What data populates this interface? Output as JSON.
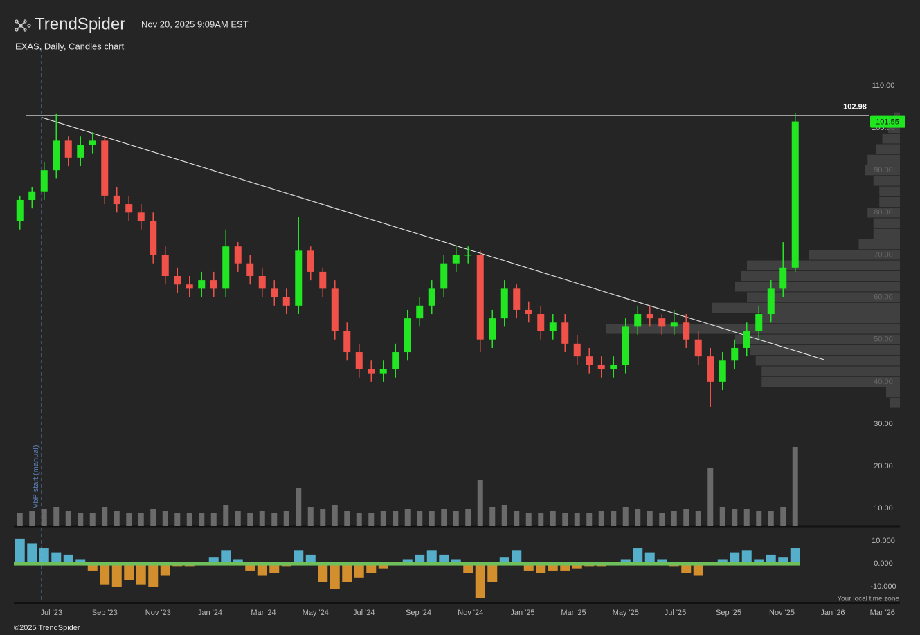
{
  "header": {
    "brand": "TrendSpider",
    "timestamp": "Nov 20, 2025 9:09AM EST",
    "chart_label": "EXAS, Daily, Candles chart",
    "footer": "©2025 TrendSpider",
    "timezone_note": "Your local time zone",
    "vbp_label": "VbP start (manual)"
  },
  "chart_data": [
    {
      "type": "candlestick",
      "open": [
        78,
        83,
        85,
        90,
        97,
        93,
        96,
        97,
        84,
        82,
        80,
        78,
        70,
        65,
        63,
        62,
        64,
        62,
        72,
        68,
        65,
        62,
        60,
        58,
        71,
        66,
        62,
        52,
        47,
        43,
        42,
        43,
        47,
        55,
        58,
        62,
        68,
        70,
        70,
        50,
        55,
        62,
        57,
        56,
        52,
        54,
        49,
        46,
        44,
        43,
        44,
        53,
        56,
        55,
        53,
        54,
        50,
        46,
        40,
        45,
        48,
        52,
        56,
        62,
        67
      ],
      "high": [
        84,
        86,
        92,
        103.3,
        98,
        98,
        99,
        98,
        86,
        84,
        82,
        80,
        72,
        67,
        65,
        66,
        66,
        76,
        73,
        70,
        67,
        64,
        62,
        79,
        72,
        67,
        64,
        54,
        49,
        45,
        45,
        49,
        57,
        60,
        64,
        70,
        72,
        72,
        71,
        57,
        64,
        63,
        59,
        58,
        56,
        56,
        51,
        48,
        46,
        46,
        55,
        58,
        58,
        56,
        57,
        56,
        52,
        48,
        47,
        50,
        54,
        58,
        64,
        73,
        103.5
      ],
      "low": [
        76,
        81,
        83,
        88,
        91,
        91,
        94,
        82,
        80,
        78,
        76,
        68,
        63,
        61,
        60,
        60,
        60,
        60,
        66,
        63,
        60,
        58,
        56,
        56,
        64,
        60,
        50,
        45,
        41,
        40,
        40,
        41,
        45,
        53,
        56,
        60,
        66,
        68,
        47,
        48,
        53,
        55,
        54,
        50,
        50,
        47,
        44,
        42,
        41,
        41,
        42,
        51,
        53,
        51,
        51,
        48,
        44,
        34,
        38,
        43,
        46,
        50,
        54,
        60,
        66
      ],
      "close": [
        83,
        85,
        90,
        97,
        93,
        96,
        97,
        84,
        82,
        80,
        78,
        70,
        65,
        63,
        62,
        64,
        62,
        72,
        68,
        65,
        62,
        60,
        58,
        71,
        66,
        62,
        52,
        47,
        43,
        42,
        43,
        47,
        55,
        58,
        62,
        68,
        70,
        70,
        50,
        55,
        62,
        57,
        56,
        52,
        54,
        49,
        46,
        44,
        43,
        44,
        53,
        56,
        55,
        53,
        54,
        50,
        46,
        40,
        45,
        48,
        52,
        56,
        62,
        67,
        101.55
      ],
      "up_color": "#22e622",
      "down_color": "#f0524a",
      "volume": [
        6,
        7,
        8,
        9,
        7,
        6,
        6,
        9,
        7,
        6,
        6,
        8,
        7,
        6,
        6,
        6,
        6,
        10,
        7,
        6,
        7,
        6,
        7,
        18,
        9,
        8,
        10,
        7,
        6,
        6,
        7,
        7,
        8,
        7,
        7,
        8,
        7,
        8,
        22,
        9,
        10,
        7,
        6,
        6,
        7,
        6,
        6,
        6,
        7,
        7,
        9,
        8,
        7,
        6,
        7,
        8,
        7,
        28,
        9,
        8,
        8,
        7,
        7,
        9,
        38
      ],
      "volume_color": "#6a6a6a",
      "volume_lim": [
        0,
        40
      ],
      "volume_profile": {
        "prices": [
          35,
          37.5,
          40,
          42.5,
          45,
          47.5,
          50,
          52.5,
          55,
          57.5,
          60,
          62.5,
          65,
          67.5,
          70,
          72.5,
          75,
          77.5,
          80,
          82.5,
          85,
          87.5,
          90,
          92.5,
          95,
          97.5,
          100,
          102.5
        ],
        "values": [
          3.5,
          4.7,
          47,
          47,
          49,
          51,
          56,
          100,
          47,
          64,
          52,
          56,
          54,
          52,
          31,
          14,
          9,
          9,
          11,
          7,
          7,
          9,
          12,
          11,
          8,
          6,
          4,
          2
        ],
        "bin_size": 2.5,
        "color": "#4a4a4a"
      },
      "xlim": [
        -0.5,
        72.5
      ],
      "xticks": [
        {
          "value": 2.6,
          "label": "Jul '23"
        },
        {
          "value": 7.0,
          "label": "Sep '23"
        },
        {
          "value": 11.4,
          "label": "Nov '23"
        },
        {
          "value": 15.7,
          "label": "Jan '24"
        },
        {
          "value": 20.1,
          "label": "Mar '24"
        },
        {
          "value": 24.4,
          "label": "May '24"
        },
        {
          "value": 28.4,
          "label": "Jul '24"
        },
        {
          "value": 32.9,
          "label": "Sep '24"
        },
        {
          "value": 37.2,
          "label": "Nov '24"
        },
        {
          "value": 41.5,
          "label": "Jan '25"
        },
        {
          "value": 45.7,
          "label": "Mar '25"
        },
        {
          "value": 50.0,
          "label": "May '25"
        },
        {
          "value": 54.1,
          "label": "Jul '25"
        },
        {
          "value": 58.5,
          "label": "Sep '25"
        },
        {
          "value": 62.9,
          "label": "Nov '25"
        },
        {
          "value": 67.1,
          "label": "Jan '26"
        },
        {
          "value": 71.2,
          "label": "Mar '26"
        }
      ],
      "ylim": [
        7,
        118
      ],
      "yticks": [
        {
          "value": 10,
          "label": "10.00"
        },
        {
          "value": 20,
          "label": "20.00"
        },
        {
          "value": 30,
          "label": "30.00"
        },
        {
          "value": 40,
          "label": "40.00"
        },
        {
          "value": 50,
          "label": "50.00"
        },
        {
          "value": 60,
          "label": "60.00"
        },
        {
          "value": 70,
          "label": "70.00"
        },
        {
          "value": 80,
          "label": "80.00"
        },
        {
          "value": 90,
          "label": "90.00"
        },
        {
          "value": 100,
          "label": "100.00"
        },
        {
          "value": 110,
          "label": "110.00"
        }
      ],
      "level_line": 102.98,
      "last_price": 101.55,
      "last_price_color": "#1fe61f",
      "trendline": {
        "x": [
          1.8,
          66.4
        ],
        "y": [
          102.5,
          45.2
        ]
      }
    },
    {
      "type": "bar",
      "values": [
        11,
        9,
        7,
        5,
        4,
        2,
        -3,
        -9,
        -10,
        -7,
        -9,
        -10,
        -5,
        -1,
        -1,
        0,
        3,
        6,
        2,
        -3,
        -5,
        -4,
        -1,
        6,
        4,
        -8,
        -11,
        -8,
        -6,
        -4,
        -2,
        0,
        2,
        4,
        6,
        4,
        2,
        -4,
        -15,
        -8,
        3,
        6,
        -3,
        -4,
        -3,
        -3,
        -2,
        -1,
        -1,
        0,
        2,
        7,
        5,
        2,
        -1,
        -4,
        -5,
        0,
        2,
        5,
        6,
        2,
        4,
        3,
        7
      ],
      "color": "#5ec8e8",
      "negative_color": "#f2a230",
      "xlim": [
        -0.5,
        72.5
      ],
      "ylim": [
        -17,
        14
      ],
      "yticks": [
        {
          "value": 10,
          "label": "10.000"
        },
        {
          "value": 0,
          "label": "0.000"
        },
        {
          "value": -10,
          "label": "-10.000"
        }
      ]
    }
  ]
}
